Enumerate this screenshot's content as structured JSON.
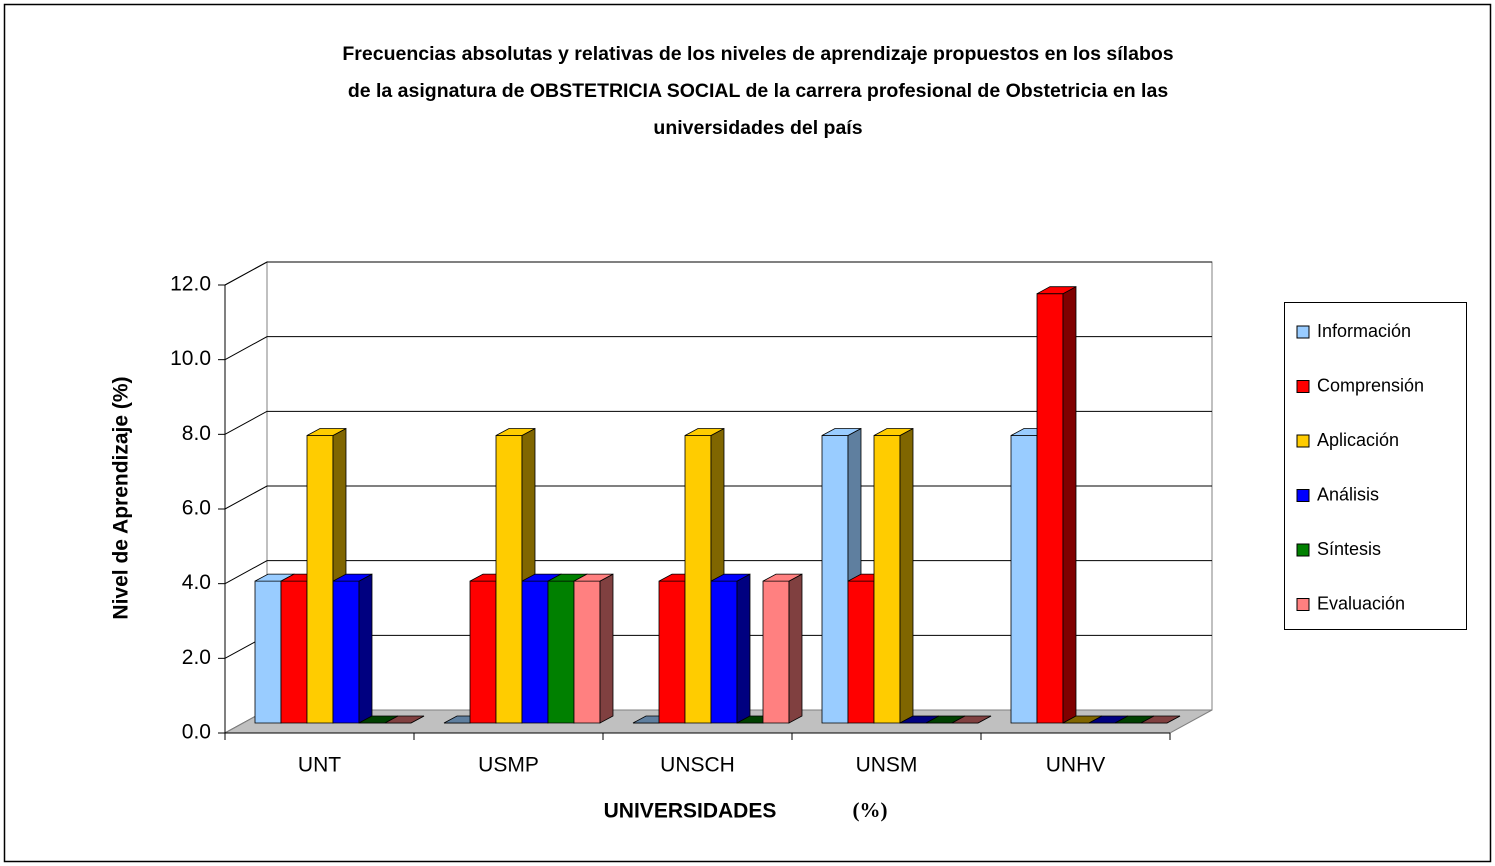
{
  "chart_data": {
    "type": "bar3d",
    "title": [
      "Frecuencias absolutas y relativas de los niveles de aprendizaje propuestos en los sílabos",
      "de la asignatura de OBSTETRICIA SOCIAL de la carrera profesional de Obstetricia en las",
      "universidades del país"
    ],
    "x_label": "UNIVERSIDADES",
    "x_label_unit": "(%)",
    "y_label": "Nivel de Aprendizaje (%)",
    "categories": [
      "UNT",
      "USMP",
      "UNSCH",
      "UNSM",
      "UNHV"
    ],
    "series": [
      {
        "name": "Información",
        "color": "#99ccff",
        "side": "#5f7f9f",
        "values": [
          3.8,
          0,
          0,
          7.7,
          7.7
        ]
      },
      {
        "name": "Comprensión",
        "color": "#ff0000",
        "side": "#800000",
        "values": [
          3.8,
          3.8,
          3.8,
          3.8,
          11.5
        ]
      },
      {
        "name": "Aplicación",
        "color": "#ffcc00",
        "side": "#806600",
        "values": [
          7.7,
          7.7,
          7.7,
          7.7,
          0
        ]
      },
      {
        "name": "Análisis",
        "color": "#0000ff",
        "side": "#000080",
        "values": [
          3.8,
          3.8,
          3.8,
          0,
          0
        ]
      },
      {
        "name": "Síntesis",
        "color": "#008000",
        "side": "#004000",
        "values": [
          0,
          3.8,
          0,
          0,
          0
        ]
      },
      {
        "name": "Evaluación",
        "color": "#ff8080",
        "side": "#804040",
        "values": [
          0,
          3.8,
          3.8,
          0,
          0
        ]
      }
    ],
    "ylim": [
      0,
      12
    ],
    "yticks": [
      {
        "value": 0,
        "label": "0.0"
      },
      {
        "value": 2,
        "label": "2.0"
      },
      {
        "value": 4,
        "label": "4.0"
      },
      {
        "value": 6,
        "label": "6.0"
      },
      {
        "value": 8,
        "label": "8.0"
      },
      {
        "value": 10,
        "label": "10.0"
      },
      {
        "value": 12,
        "label": "12.0"
      }
    ],
    "grid": true,
    "legend": "right"
  }
}
